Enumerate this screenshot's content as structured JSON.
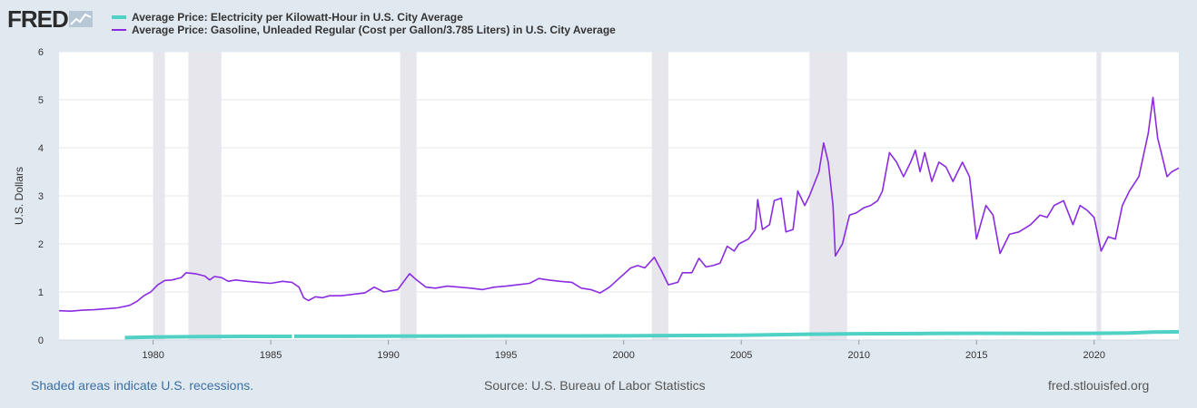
{
  "logo": {
    "text": "FRED",
    "icon": "chart-line-icon"
  },
  "legend": [
    {
      "label": "Average Price: Electricity per Kilowatt-Hour in U.S. City Average",
      "color": "#4fd1c5"
    },
    {
      "label": "Average Price: Gasoline, Unleaded Regular (Cost per Gallon/3.785 Liters) in U.S. City Average",
      "color": "#8a2be2"
    }
  ],
  "footer": {
    "recession_note": "Shaded areas indicate U.S. recessions.",
    "source": "Source: U.S. Bureau of Labor Statistics",
    "site": "fred.stlouisfed.org"
  },
  "chart_data": {
    "type": "line",
    "title": "",
    "xlabel": "",
    "ylabel": "U.S. Dollars",
    "xlim": [
      1976,
      2023.6
    ],
    "ylim": [
      0,
      6
    ],
    "x_ticks": [
      1980,
      1985,
      1990,
      1995,
      2000,
      2005,
      2010,
      2015,
      2020
    ],
    "y_ticks": [
      0,
      1,
      2,
      3,
      4,
      5,
      6
    ],
    "recessions": [
      [
        1980.0,
        1980.5
      ],
      [
        1981.5,
        1982.9
      ],
      [
        1990.5,
        1991.2
      ],
      [
        2001.2,
        2001.9
      ],
      [
        2007.9,
        2009.5
      ],
      [
        2020.1,
        2020.3
      ]
    ],
    "series": [
      {
        "name": "Average Price: Electricity per Kilowatt-Hour in U.S. City Average",
        "color": "#4fd1c5",
        "segments": [
          [
            [
              1978.8,
              0.05
            ],
            [
              1980,
              0.06
            ],
            [
              1982,
              0.07
            ],
            [
              1984,
              0.075
            ],
            [
              1985.9,
              0.076
            ]
          ],
          [
            [
              1986.0,
              0.077
            ],
            [
              1990,
              0.08
            ],
            [
              1995,
              0.085
            ],
            [
              2000,
              0.087
            ],
            [
              2005,
              0.1
            ],
            [
              2008,
              0.12
            ],
            [
              2010,
              0.13
            ],
            [
              2013,
              0.135
            ],
            [
              2015,
              0.14
            ],
            [
              2018,
              0.135
            ],
            [
              2020,
              0.14
            ],
            [
              2021.5,
              0.145
            ],
            [
              2022.5,
              0.165
            ],
            [
              2023.6,
              0.17
            ]
          ]
        ]
      },
      {
        "name": "Average Price: Gasoline, Unleaded Regular (Cost per Gallon/3.785 Liters) in U.S. City Average",
        "color": "#8a2be2",
        "points": [
          [
            1976.0,
            0.61
          ],
          [
            1976.5,
            0.6
          ],
          [
            1977.0,
            0.62
          ],
          [
            1977.5,
            0.63
          ],
          [
            1978.0,
            0.65
          ],
          [
            1978.5,
            0.67
          ],
          [
            1979.0,
            0.72
          ],
          [
            1979.3,
            0.8
          ],
          [
            1979.6,
            0.92
          ],
          [
            1979.9,
            1.0
          ],
          [
            1980.2,
            1.15
          ],
          [
            1980.5,
            1.24
          ],
          [
            1980.8,
            1.25
          ],
          [
            1981.2,
            1.3
          ],
          [
            1981.4,
            1.4
          ],
          [
            1981.8,
            1.38
          ],
          [
            1982.2,
            1.33
          ],
          [
            1982.4,
            1.25
          ],
          [
            1982.6,
            1.32
          ],
          [
            1982.9,
            1.3
          ],
          [
            1983.2,
            1.22
          ],
          [
            1983.5,
            1.25
          ],
          [
            1984.0,
            1.22
          ],
          [
            1984.5,
            1.2
          ],
          [
            1985.0,
            1.18
          ],
          [
            1985.5,
            1.22
          ],
          [
            1985.9,
            1.2
          ],
          [
            1986.2,
            1.1
          ],
          [
            1986.4,
            0.88
          ],
          [
            1986.6,
            0.82
          ],
          [
            1986.9,
            0.9
          ],
          [
            1987.2,
            0.88
          ],
          [
            1987.5,
            0.92
          ],
          [
            1988.0,
            0.92
          ],
          [
            1988.5,
            0.95
          ],
          [
            1989.0,
            0.98
          ],
          [
            1989.4,
            1.1
          ],
          [
            1989.8,
            1.0
          ],
          [
            1990.4,
            1.05
          ],
          [
            1990.7,
            1.25
          ],
          [
            1990.9,
            1.38
          ],
          [
            1991.2,
            1.25
          ],
          [
            1991.6,
            1.1
          ],
          [
            1992.0,
            1.08
          ],
          [
            1992.5,
            1.12
          ],
          [
            1993.0,
            1.1
          ],
          [
            1993.5,
            1.08
          ],
          [
            1994.0,
            1.05
          ],
          [
            1994.5,
            1.1
          ],
          [
            1995.0,
            1.12
          ],
          [
            1995.5,
            1.15
          ],
          [
            1996.0,
            1.18
          ],
          [
            1996.4,
            1.28
          ],
          [
            1996.8,
            1.25
          ],
          [
            1997.3,
            1.22
          ],
          [
            1997.8,
            1.2
          ],
          [
            1998.2,
            1.08
          ],
          [
            1998.6,
            1.05
          ],
          [
            1999.0,
            0.98
          ],
          [
            1999.4,
            1.1
          ],
          [
            1999.8,
            1.28
          ],
          [
            2000.3,
            1.5
          ],
          [
            2000.6,
            1.55
          ],
          [
            2000.9,
            1.5
          ],
          [
            2001.3,
            1.72
          ],
          [
            2001.6,
            1.45
          ],
          [
            2001.9,
            1.15
          ],
          [
            2002.3,
            1.2
          ],
          [
            2002.5,
            1.4
          ],
          [
            2002.9,
            1.4
          ],
          [
            2003.2,
            1.7
          ],
          [
            2003.5,
            1.52
          ],
          [
            2003.8,
            1.55
          ],
          [
            2004.1,
            1.6
          ],
          [
            2004.4,
            1.95
          ],
          [
            2004.7,
            1.85
          ],
          [
            2004.9,
            2.0
          ],
          [
            2005.3,
            2.1
          ],
          [
            2005.6,
            2.3
          ],
          [
            2005.7,
            2.92
          ],
          [
            2005.9,
            2.3
          ],
          [
            2006.2,
            2.4
          ],
          [
            2006.4,
            2.9
          ],
          [
            2006.7,
            2.95
          ],
          [
            2006.9,
            2.25
          ],
          [
            2007.2,
            2.3
          ],
          [
            2007.4,
            3.1
          ],
          [
            2007.7,
            2.8
          ],
          [
            2007.9,
            3.0
          ],
          [
            2008.3,
            3.5
          ],
          [
            2008.5,
            4.1
          ],
          [
            2008.7,
            3.7
          ],
          [
            2008.9,
            2.8
          ],
          [
            2009.0,
            1.75
          ],
          [
            2009.3,
            2.0
          ],
          [
            2009.6,
            2.6
          ],
          [
            2009.9,
            2.65
          ],
          [
            2010.2,
            2.75
          ],
          [
            2010.5,
            2.8
          ],
          [
            2010.8,
            2.9
          ],
          [
            2011.0,
            3.1
          ],
          [
            2011.3,
            3.9
          ],
          [
            2011.6,
            3.7
          ],
          [
            2011.9,
            3.4
          ],
          [
            2012.2,
            3.7
          ],
          [
            2012.4,
            3.95
          ],
          [
            2012.6,
            3.5
          ],
          [
            2012.8,
            3.9
          ],
          [
            2013.1,
            3.3
          ],
          [
            2013.4,
            3.7
          ],
          [
            2013.7,
            3.6
          ],
          [
            2014.0,
            3.3
          ],
          [
            2014.4,
            3.7
          ],
          [
            2014.7,
            3.4
          ],
          [
            2015.0,
            2.1
          ],
          [
            2015.4,
            2.8
          ],
          [
            2015.7,
            2.6
          ],
          [
            2016.0,
            1.8
          ],
          [
            2016.4,
            2.2
          ],
          [
            2016.8,
            2.25
          ],
          [
            2017.3,
            2.4
          ],
          [
            2017.7,
            2.6
          ],
          [
            2018.0,
            2.55
          ],
          [
            2018.3,
            2.8
          ],
          [
            2018.7,
            2.9
          ],
          [
            2019.1,
            2.4
          ],
          [
            2019.4,
            2.8
          ],
          [
            2019.7,
            2.7
          ],
          [
            2020.0,
            2.55
          ],
          [
            2020.3,
            1.85
          ],
          [
            2020.6,
            2.15
          ],
          [
            2020.9,
            2.1
          ],
          [
            2021.2,
            2.8
          ],
          [
            2021.5,
            3.1
          ],
          [
            2021.9,
            3.4
          ],
          [
            2022.3,
            4.3
          ],
          [
            2022.5,
            5.05
          ],
          [
            2022.7,
            4.2
          ],
          [
            2022.9,
            3.8
          ],
          [
            2023.1,
            3.4
          ],
          [
            2023.3,
            3.5
          ],
          [
            2023.6,
            3.58
          ]
        ]
      }
    ]
  }
}
